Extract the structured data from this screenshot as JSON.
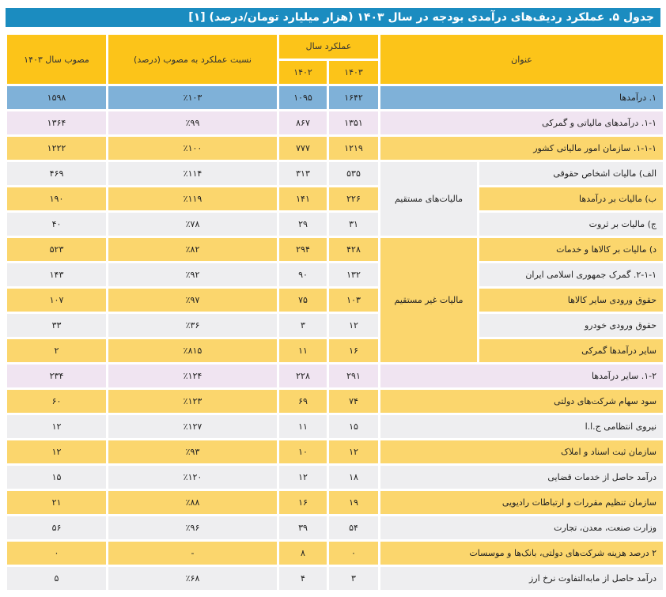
{
  "title": "جدول ۵. عملکرد ردیف‌های درآمدی بودجه در سال ۱۴۰۳ (هزار میلیارد تومان/درصد) [۱]",
  "header": {
    "title_col": "عنوان",
    "performance_group": "عملکرد سال",
    "year_1403": "۱۴۰۳",
    "year_1402": "۱۴۰۲",
    "ratio": "نسبت عملکرد به مصوب (درصد)",
    "approved": "مصوب سال ۱۴۰۳"
  },
  "groups": {
    "direct": "مالیات‌های مستقیم",
    "indirect": "مالیات غیر مستقیم"
  },
  "rows": [
    {
      "title": "۱. درآمدها",
      "v1403": "۱۶۴۲",
      "v1402": "۱۰۹۵",
      "ratio": "٪۱۰۳",
      "approved": "۱۵۹۸",
      "style": "blue"
    },
    {
      "title": "۱-۱. درآمدهای مالیاتی و گمرکی",
      "v1403": "۱۳۵۱",
      "v1402": "۸۶۷",
      "ratio": "٪۹۹",
      "approved": "۱۳۶۴",
      "style": "lav"
    },
    {
      "title": "۱-۱-۱. سازمان امور مالیاتی کشور",
      "v1403": "۱۲۱۹",
      "v1402": "۷۷۷",
      "ratio": "٪۱۰۰",
      "approved": "۱۲۲۲",
      "style": "yel"
    },
    {
      "title": "الف) مالیات اشخاص حقوقی",
      "v1403": "۵۳۵",
      "v1402": "۳۱۳",
      "ratio": "٪۱۱۴",
      "approved": "۴۶۹",
      "style": "gry",
      "group": "direct"
    },
    {
      "title": "ب) مالیات بر درآمدها",
      "v1403": "۲۲۶",
      "v1402": "۱۴۱",
      "ratio": "٪۱۱۹",
      "approved": "۱۹۰",
      "style": "yel",
      "group": "direct"
    },
    {
      "title": "ج) مالیات بر ثروت",
      "v1403": "۳۱",
      "v1402": "۲۹",
      "ratio": "٪۷۸",
      "approved": "۴۰",
      "style": "gry",
      "group": "direct"
    },
    {
      "title": "د) مالیات بر کالاها و خدمات",
      "v1403": "۴۲۸",
      "v1402": "۲۹۴",
      "ratio": "٪۸۲",
      "approved": "۵۲۳",
      "style": "yel",
      "group": "indirect"
    },
    {
      "title": "۲-۱-۱. گمرک جمهوری اسلامی ایران",
      "v1403": "۱۳۲",
      "v1402": "۹۰",
      "ratio": "٪۹۲",
      "approved": "۱۴۳",
      "style": "gry",
      "group": "indirect"
    },
    {
      "title": "حقوق ورودی سایر کالاها",
      "v1403": "۱۰۳",
      "v1402": "۷۵",
      "ratio": "٪۹۷",
      "approved": "۱۰۷",
      "style": "yel",
      "group": "indirect"
    },
    {
      "title": "حقوق ورودی خودرو",
      "v1403": "۱۲",
      "v1402": "۳",
      "ratio": "٪۳۶",
      "approved": "۳۳",
      "style": "gry",
      "group": "indirect"
    },
    {
      "title": "سایر درآمدها گمرکی",
      "v1403": "۱۶",
      "v1402": "۱۱",
      "ratio": "٪۸۱۵",
      "approved": "۲",
      "style": "yel",
      "group": "indirect"
    },
    {
      "title": "۱-۲. سایر درآمدها",
      "v1403": "۲۹۱",
      "v1402": "۲۲۸",
      "ratio": "٪۱۲۴",
      "approved": "۲۳۴",
      "style": "lav"
    },
    {
      "title": "سود سهام شرکت‌های دولتی",
      "v1403": "۷۴",
      "v1402": "۶۹",
      "ratio": "٪۱۲۳",
      "approved": "۶۰",
      "style": "yel"
    },
    {
      "title": "نیروی انتظامی ج.ا.ا",
      "v1403": "۱۵",
      "v1402": "۱۱",
      "ratio": "٪۱۲۷",
      "approved": "۱۲",
      "style": "gry"
    },
    {
      "title": "سازمان ثبت اسناد و املاک",
      "v1403": "۱۲",
      "v1402": "۱۰",
      "ratio": "٪۹۳",
      "approved": "۱۲",
      "style": "yel"
    },
    {
      "title": "درآمد حاصل از خدمات قضایی",
      "v1403": "۱۸",
      "v1402": "۱۲",
      "ratio": "٪۱۲۰",
      "approved": "۱۵",
      "style": "gry"
    },
    {
      "title": "سازمان تنظیم مقررات و ارتباطات رادیویی",
      "v1403": "۱۹",
      "v1402": "۱۶",
      "ratio": "٪۸۸",
      "approved": "۲۱",
      "style": "yel"
    },
    {
      "title": "وزارت صنعت، معدن، تجارت",
      "v1403": "۵۴",
      "v1402": "۳۹",
      "ratio": "٪۹۶",
      "approved": "۵۶",
      "style": "gry"
    },
    {
      "title": "۲ درصد هزینه شرکت‌های دولتی، بانک‌ها و موسسات",
      "v1403": "۰",
      "v1402": "۸",
      "ratio": "-",
      "approved": "۰",
      "style": "yel"
    },
    {
      "title": "درآمد حاصل از مابه‌التفاوت نرخ ارز",
      "v1403": "۳",
      "v1402": "۴",
      "ratio": "٪۶۸",
      "approved": "۵",
      "style": "gry"
    }
  ]
}
